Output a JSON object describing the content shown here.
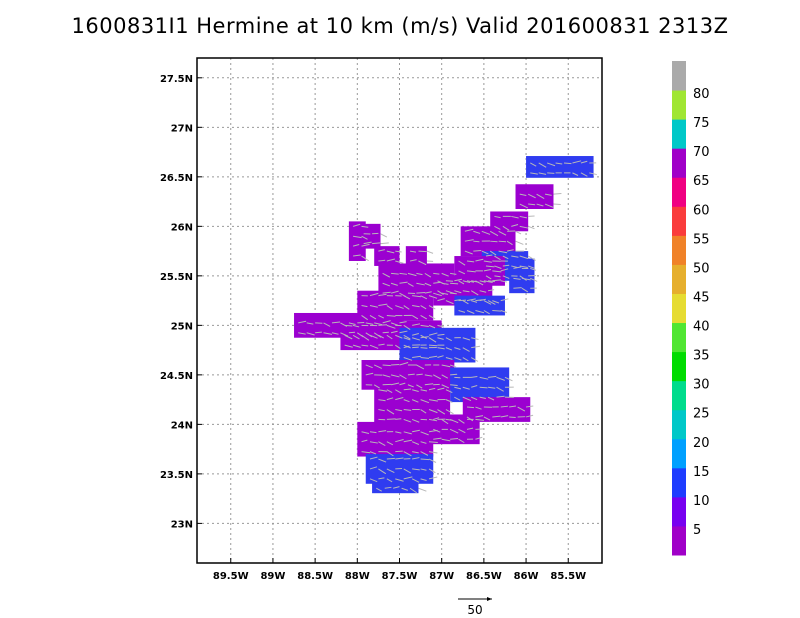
{
  "title": "1600831I1 Hermine at 10 km (m/s) Valid 201600831 2313Z",
  "chart_data": {
    "type": "heatmap",
    "title": "1600831I1 Hermine at 10 km (m/s) Valid 201600831 2313Z",
    "units": "m/s",
    "grid": true,
    "x_axis": {
      "range": [
        -89.9,
        -85.1
      ],
      "ticks": [
        -89.5,
        -89.0,
        -88.5,
        -88.0,
        -87.5,
        -87.0,
        -86.5,
        -86.0,
        -85.5
      ],
      "tick_labels": [
        "89.5W",
        "89W",
        "88.5W",
        "88W",
        "87.5W",
        "87W",
        "86.5W",
        "86W",
        "85.5W"
      ]
    },
    "y_axis": {
      "range": [
        22.6,
        27.7
      ],
      "ticks": [
        23.0,
        23.5,
        24.0,
        24.5,
        25.0,
        25.5,
        26.0,
        26.5,
        27.0,
        27.5
      ],
      "tick_labels": [
        "23N",
        "23.5N",
        "24N",
        "24.5N",
        "25N",
        "25.5N",
        "26N",
        "26.5N",
        "27N",
        "27.5N"
      ]
    },
    "colorbar": {
      "labels": [
        "5",
        "10",
        "15",
        "20",
        "25",
        "30",
        "35",
        "40",
        "45",
        "50",
        "55",
        "60",
        "65",
        "70",
        "75",
        "80"
      ],
      "colors": [
        "#a000c8",
        "#7800f0",
        "#1e3cff",
        "#00a0ff",
        "#00c8c8",
        "#00dc8c",
        "#00dc00",
        "#50e632",
        "#e6dc32",
        "#e6af2d",
        "#f08228",
        "#fa3c3c",
        "#f00082",
        "#a000c8",
        "#00c8c8",
        "#a0e632",
        "#aaaaaa"
      ]
    },
    "wind_cells": [
      [
        -85.6,
        26.6,
        0.8,
        0.22,
        10
      ],
      [
        -85.9,
        26.3,
        0.45,
        0.25,
        5
      ],
      [
        -86.2,
        26.05,
        0.45,
        0.2,
        5
      ],
      [
        -86.45,
        25.85,
        0.65,
        0.3,
        5
      ],
      [
        -86.25,
        25.6,
        0.55,
        0.3,
        10
      ],
      [
        -86.55,
        25.55,
        0.6,
        0.3,
        5
      ],
      [
        -86.05,
        25.5,
        0.3,
        0.35,
        10
      ],
      [
        -86.75,
        25.35,
        0.7,
        0.3,
        5
      ],
      [
        -86.55,
        25.2,
        0.6,
        0.2,
        10
      ],
      [
        -87.3,
        25.45,
        0.9,
        0.35,
        5
      ],
      [
        -87.55,
        25.2,
        0.9,
        0.3,
        5
      ],
      [
        -88.1,
        25.0,
        1.3,
        0.25,
        5
      ],
      [
        -87.6,
        24.9,
        1.2,
        0.3,
        5
      ],
      [
        -87.05,
        24.8,
        0.9,
        0.35,
        10
      ],
      [
        -87.4,
        24.5,
        1.1,
        0.3,
        5
      ],
      [
        -86.55,
        24.4,
        0.7,
        0.35,
        10
      ],
      [
        -86.35,
        24.15,
        0.8,
        0.25,
        5
      ],
      [
        -87.35,
        24.2,
        0.9,
        0.4,
        5
      ],
      [
        -87.55,
        23.85,
        0.9,
        0.35,
        5
      ],
      [
        -86.85,
        23.95,
        0.6,
        0.3,
        5
      ],
      [
        -87.5,
        23.55,
        0.8,
        0.3,
        10
      ],
      [
        -87.55,
        23.38,
        0.55,
        0.15,
        10
      ],
      [
        -88.0,
        25.85,
        0.2,
        0.4,
        5
      ],
      [
        -87.85,
        25.9,
        0.25,
        0.25,
        5
      ],
      [
        -87.65,
        25.7,
        0.3,
        0.2,
        5
      ],
      [
        -87.3,
        25.7,
        0.25,
        0.2,
        5
      ]
    ],
    "reference_vector": {
      "label": "50",
      "speed": 50
    }
  }
}
